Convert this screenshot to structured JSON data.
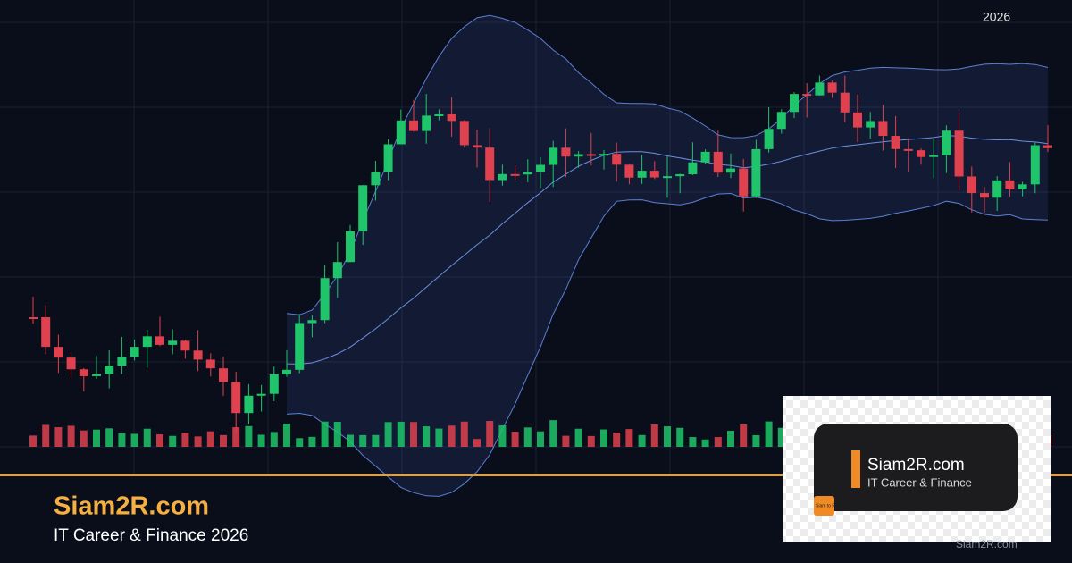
{
  "header": {
    "year": "2026"
  },
  "footer": {
    "title": "Siam2R.com",
    "subtitle": "IT Career & Finance 2026"
  },
  "card": {
    "title": "Siam2R.com",
    "subtitle": "IT Career & Finance",
    "icon_label": "Siam to Rich",
    "watermark": "Siam2R.com"
  }
}
